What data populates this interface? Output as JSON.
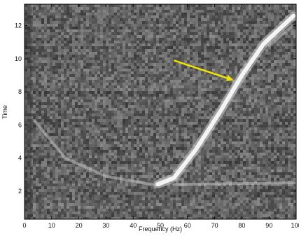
{
  "chart_data": {
    "type": "heatmap",
    "title": "",
    "xlabel": "Frequency (Hz)",
    "ylabel": "Time",
    "xlim": [
      0,
      100
    ],
    "ylim": [
      0.3,
      13.3
    ],
    "xticks": [
      0,
      10,
      20,
      30,
      40,
      50,
      60,
      70,
      80,
      90,
      100
    ],
    "yticks": [
      2,
      4,
      6,
      8,
      10,
      12
    ],
    "colormap": "grayscale",
    "background_noise": "random mid-gray speckle",
    "features": [
      {
        "kind": "bright-line",
        "points": [
          [
            49,
            2.4
          ],
          [
            55,
            2.8
          ],
          [
            63,
            4.5
          ],
          [
            72,
            6.8
          ],
          [
            80,
            9.0
          ],
          [
            88,
            10.9
          ],
          [
            99,
            12.6
          ]
        ]
      },
      {
        "kind": "faint-line",
        "points": [
          [
            4,
            6.2
          ],
          [
            15,
            4.0
          ],
          [
            30,
            2.9
          ],
          [
            47,
            2.4
          ]
        ]
      },
      {
        "kind": "faint-line",
        "points": [
          [
            55,
            2.4
          ],
          [
            100,
            2.5
          ]
        ]
      },
      {
        "kind": "faint-line",
        "points": [
          [
            90,
            10.8
          ],
          [
            98,
            11.9
          ]
        ]
      }
    ],
    "annotation": {
      "kind": "arrow",
      "color": "#f0e400",
      "from": [
        55,
        9.9
      ],
      "to": [
        77,
        8.7
      ]
    }
  }
}
